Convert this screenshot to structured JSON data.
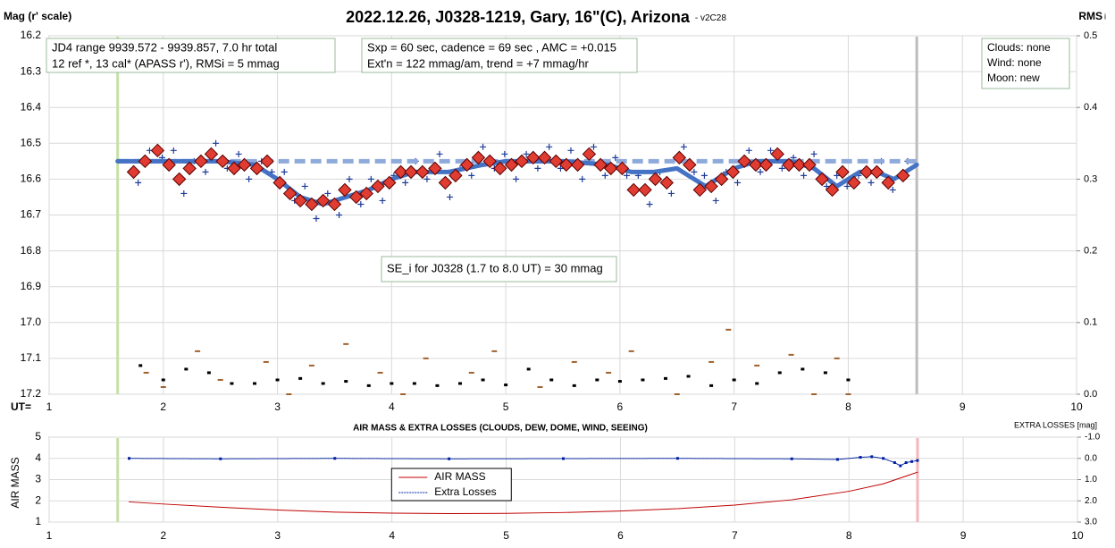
{
  "chart_data": [
    {
      "type": "line",
      "title": "2022.12.26, J0328-1219, Gary, 16\"(C), Arizona",
      "subtitle": "- v2C28",
      "ylabel": "Mag (r' scale)",
      "y2label": "RMS",
      "y2label_sub": "i",
      "xlabel": "UT=",
      "xlim": [
        1,
        10
      ],
      "xticks": [
        1,
        2,
        3,
        4,
        5,
        6,
        7,
        8,
        9,
        10
      ],
      "ylim": [
        16.2,
        17.2
      ],
      "y_inverted": true,
      "yticks": [
        16.2,
        16.3,
        16.4,
        16.5,
        16.6,
        16.7,
        16.8,
        16.9,
        {
          "value": 17,
          "label": "17.0"
        },
        17.1,
        17.2
      ],
      "y2lim": [
        0,
        0.5
      ],
      "y2ticks": [
        0.5,
        0.4,
        0.3,
        0.2,
        0.1,
        {
          "value": 0,
          "label": "0.0"
        }
      ],
      "grid": true,
      "vlines": [
        {
          "x": 1.6,
          "color": "#c6e0a8"
        },
        {
          "x": 8.6,
          "color": "#bdbdbd"
        }
      ],
      "annotations": [
        {
          "lines": [
            "JD4 range 9939.572 - 9939.857, 7.0 hr total",
            "12 ref *, 13 cal*  (APASS r'), RMSi = 5 mmag"
          ]
        },
        {
          "lines": [
            "Sxp = 60 sec, cadence = 69 sec , AMC = +0.015",
            "Ext'n = 122 mmag/am, trend = +7 mmag/hr"
          ]
        },
        {
          "lines": [
            "Clouds: none",
            "Wind:  none",
            "Moon: new"
          ]
        },
        {
          "lines": [
            "SE_i for J0328 (1.7 to 8.0 UT) = 30 mmag"
          ]
        }
      ],
      "series": [
        {
          "style": "cross",
          "color": "#1f3c99",
          "x": [
            1.78,
            1.88,
            1.99,
            2.09,
            2.18,
            2.27,
            2.37,
            2.46,
            2.56,
            2.66,
            2.75,
            2.86,
            2.95,
            3.06,
            3.15,
            3.24,
            3.34,
            3.44,
            3.54,
            3.63,
            3.73,
            3.82,
            3.92,
            4.02,
            4.12,
            4.21,
            4.31,
            4.42,
            4.51,
            4.6,
            4.7,
            4.8,
            4.9,
            4.99,
            5.09,
            5.18,
            5.28,
            5.38,
            5.48,
            5.57,
            5.67,
            5.77,
            5.87,
            5.96,
            6.06,
            6.16,
            6.26,
            6.35,
            6.45,
            6.56,
            6.65,
            6.74,
            6.84,
            6.93,
            7.03,
            7.13,
            7.23,
            7.32,
            7.42,
            7.52,
            7.61,
            7.7,
            7.81,
            7.9,
            7.99,
            8.09,
            8.2,
            8.29,
            8.39,
            8.52
          ],
          "values": [
            16.61,
            16.52,
            16.54,
            16.52,
            16.64,
            16.55,
            16.58,
            16.5,
            16.57,
            16.53,
            16.6,
            16.55,
            16.58,
            16.58,
            16.66,
            16.62,
            16.71,
            16.64,
            16.7,
            16.6,
            16.67,
            16.6,
            16.66,
            16.59,
            16.61,
            16.55,
            16.6,
            16.53,
            16.65,
            16.57,
            16.59,
            16.51,
            16.57,
            16.53,
            16.6,
            16.53,
            16.57,
            16.51,
            16.57,
            16.52,
            16.6,
            16.51,
            16.59,
            16.54,
            16.59,
            16.59,
            16.67,
            16.58,
            16.64,
            16.51,
            16.58,
            16.59,
            16.66,
            16.58,
            16.61,
            16.52,
            16.58,
            16.52,
            16.57,
            16.54,
            16.59,
            16.53,
            16.62,
            16.59,
            16.62,
            16.59,
            16.61,
            16.55,
            16.63,
            16.55
          ]
        },
        {
          "style": "dashed",
          "color": "#8ea9db",
          "x": [
            1.6,
            8.6
          ],
          "values": [
            16.55,
            16.55
          ]
        },
        {
          "style": "line",
          "color": "#4472c4",
          "x": [
            1.6,
            2.0,
            2.5,
            2.8,
            3.0,
            3.2,
            3.4,
            3.6,
            3.8,
            4.0,
            4.2,
            4.5,
            4.8,
            5.0,
            5.5,
            5.9,
            6.1,
            6.3,
            6.5,
            6.75,
            7.0,
            7.2,
            7.5,
            7.7,
            7.9,
            8.1,
            8.25,
            8.4,
            8.6
          ],
          "values": [
            16.55,
            16.55,
            16.55,
            16.56,
            16.6,
            16.65,
            16.67,
            16.65,
            16.63,
            16.6,
            16.58,
            16.58,
            16.56,
            16.55,
            16.55,
            16.56,
            16.58,
            16.58,
            16.57,
            16.62,
            16.57,
            16.55,
            16.55,
            16.57,
            16.62,
            16.58,
            16.58,
            16.6,
            16.56
          ]
        },
        {
          "style": "diamond",
          "color": "#e03c31",
          "x": [
            1.74,
            1.84,
            1.95,
            2.05,
            2.14,
            2.23,
            2.33,
            2.42,
            2.52,
            2.62,
            2.71,
            2.82,
            2.91,
            3.02,
            3.11,
            3.2,
            3.3,
            3.4,
            3.5,
            3.59,
            3.69,
            3.78,
            3.88,
            3.98,
            4.08,
            4.17,
            4.27,
            4.38,
            4.47,
            4.56,
            4.66,
            4.76,
            4.86,
            4.95,
            5.05,
            5.14,
            5.24,
            5.34,
            5.44,
            5.53,
            5.63,
            5.73,
            5.83,
            5.92,
            6.02,
            6.12,
            6.22,
            6.31,
            6.41,
            6.52,
            6.61,
            6.7,
            6.8,
            6.89,
            6.99,
            7.09,
            7.19,
            7.28,
            7.38,
            7.48,
            7.57,
            7.66,
            7.77,
            7.86,
            7.95,
            8.05,
            8.16,
            8.25,
            8.35,
            8.48
          ],
          "values": [
            16.58,
            16.55,
            16.52,
            16.56,
            16.6,
            16.57,
            16.55,
            16.53,
            16.55,
            16.57,
            16.56,
            16.57,
            16.55,
            16.61,
            16.64,
            16.66,
            16.67,
            16.66,
            16.67,
            16.63,
            16.65,
            16.64,
            16.62,
            16.61,
            16.58,
            16.58,
            16.58,
            16.57,
            16.61,
            16.59,
            16.56,
            16.54,
            16.55,
            16.57,
            16.56,
            16.55,
            16.54,
            16.54,
            16.55,
            16.56,
            16.56,
            16.53,
            16.56,
            16.57,
            16.57,
            16.63,
            16.63,
            16.6,
            16.61,
            16.54,
            16.56,
            16.63,
            16.62,
            16.6,
            16.58,
            16.55,
            16.56,
            16.56,
            16.53,
            16.56,
            16.56,
            16.56,
            16.6,
            16.63,
            16.58,
            16.61,
            16.58,
            16.58,
            16.61,
            16.59
          ]
        },
        {
          "style": "dash",
          "color": "#a0622d",
          "axis": "y2",
          "x": [
            1.85,
            2.0,
            2.3,
            2.5,
            2.9,
            3.1,
            3.3,
            3.6,
            3.9,
            4.1,
            4.3,
            4.7,
            4.9,
            5.3,
            5.6,
            5.9,
            6.1,
            6.5,
            6.8,
            6.95,
            7.2,
            7.5,
            7.7,
            7.9,
            8.0
          ],
          "values": [
            0.03,
            0.01,
            0.06,
            0.02,
            0.045,
            0,
            0.04,
            0.07,
            0.03,
            0,
            0.05,
            0.03,
            0.06,
            0.01,
            0.045,
            0.03,
            0.06,
            0,
            0.045,
            0.09,
            0.04,
            0.055,
            0,
            0.05,
            0
          ]
        },
        {
          "style": "dot",
          "color": "#000000",
          "axis": "y2",
          "x": [
            1.8,
            2.0,
            2.2,
            2.4,
            2.6,
            2.8,
            3.0,
            3.2,
            3.4,
            3.6,
            3.8,
            4.0,
            4.2,
            4.4,
            4.6,
            4.8,
            5.0,
            5.2,
            5.4,
            5.6,
            5.8,
            6.0,
            6.2,
            6.4,
            6.6,
            6.8,
            7.0,
            7.2,
            7.4,
            7.6,
            7.8,
            8.0
          ],
          "values": [
            0.04,
            0.02,
            0.035,
            0.03,
            0.015,
            0.015,
            0.02,
            0.022,
            0.015,
            0.018,
            0.012,
            0.015,
            0.015,
            0.012,
            0.015,
            0.02,
            0.013,
            0.035,
            0.02,
            0.012,
            0.02,
            0.018,
            0.02,
            0.022,
            0.025,
            0.012,
            0.02,
            0.015,
            0.03,
            0.035,
            0.03,
            0.02
          ]
        }
      ]
    },
    {
      "type": "line",
      "title": "AIR MASS & EXTRA LOSSES (CLOUDS, DEW, DOME, WIND, SEEING)",
      "ylabel": "AIR MASS",
      "y2label": "EXTRA LOSSES [mag]",
      "xlim": [
        1,
        10
      ],
      "xticks": [
        1,
        2,
        3,
        4,
        5,
        6,
        7,
        8,
        9,
        10
      ],
      "ylim": [
        1,
        5
      ],
      "yticks": [
        1,
        2,
        3,
        4,
        5
      ],
      "y2lim": [
        -1,
        3
      ],
      "y2_inverted": true,
      "y2ticks": [
        {
          "value": -1,
          "label": "-1.0"
        },
        {
          "value": 0,
          "label": "0.0"
        },
        {
          "value": 1,
          "label": "1.0"
        },
        {
          "value": 2,
          "label": "2.0"
        },
        {
          "value": 3,
          "label": "3.0"
        }
      ],
      "grid": true,
      "legend": "lower center",
      "vlines": [
        {
          "x": 1.6,
          "color": "#c6e0a8"
        },
        {
          "x": 8.6,
          "color": "#f4b6bd"
        }
      ],
      "series": [
        {
          "name": "AIR MASS",
          "style": "line",
          "width": 1,
          "color": "#c00000",
          "x": [
            1.7,
            2.0,
            2.5,
            3.0,
            3.5,
            4.0,
            4.5,
            5.0,
            5.5,
            6.0,
            6.5,
            7.0,
            7.5,
            8.0,
            8.3,
            8.6
          ],
          "values": [
            1.95,
            1.85,
            1.7,
            1.57,
            1.47,
            1.42,
            1.4,
            1.41,
            1.45,
            1.52,
            1.63,
            1.8,
            2.05,
            2.45,
            2.8,
            3.35
          ]
        },
        {
          "name": "Extra Losses",
          "style": "dotline",
          "color": "#0020a0",
          "axis": "y2",
          "x": [
            1.7,
            2.5,
            3.5,
            4.5,
            5.5,
            6.5,
            7.5,
            7.9,
            8.1,
            8.2,
            8.3,
            8.4,
            8.45,
            8.5,
            8.55,
            8.6
          ],
          "values": [
            0,
            0.02,
            0,
            0.02,
            0.01,
            0,
            0.02,
            0.05,
            -0.05,
            -0.08,
            0,
            0.2,
            0.35,
            0.2,
            0.15,
            0.1
          ]
        }
      ]
    }
  ]
}
